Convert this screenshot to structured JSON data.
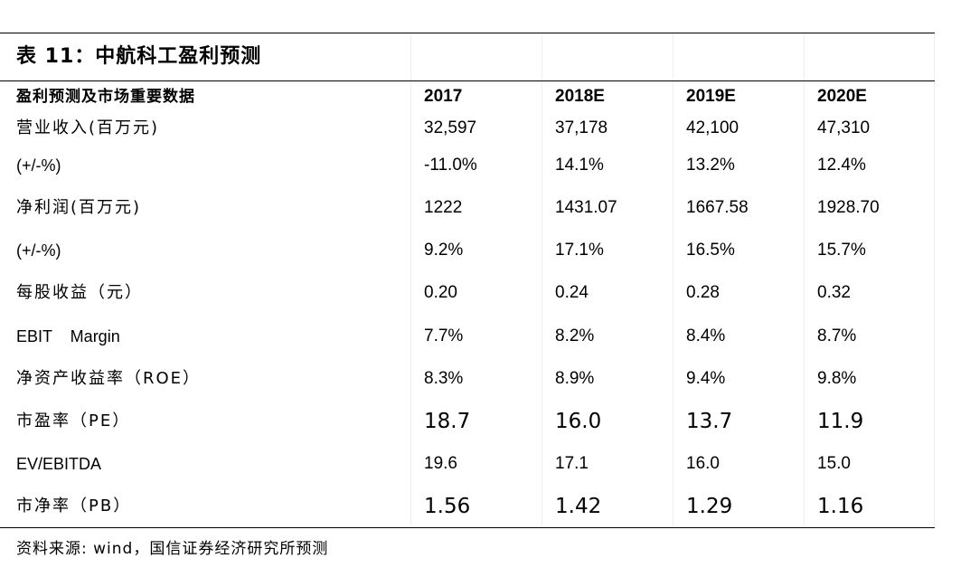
{
  "title": "表 11：中航科工盈利预测",
  "header": {
    "label": "盈利预测及市场重要数据",
    "years": [
      "2017",
      "2018E",
      "2019E",
      "2020E"
    ]
  },
  "rows": [
    {
      "label": "营业收入(百万元)",
      "values": [
        "32,597",
        "37,178",
        "42,100",
        "47,310"
      ]
    },
    {
      "label": "(+/-%)",
      "values": [
        "-11.0%",
        "14.1%",
        "13.2%",
        "12.4%"
      ]
    },
    {
      "label": "净利润(百万元)",
      "values": [
        "1222",
        "1431.07",
        "1667.58",
        "1928.70"
      ]
    },
    {
      "label": "(+/-%)",
      "values": [
        "9.2%",
        "17.1%",
        "16.5%",
        "15.7%"
      ]
    },
    {
      "label": "每股收益（元）",
      "values": [
        "0.20",
        "0.24",
        "0.28",
        "0.32"
      ]
    },
    {
      "label": "EBIT    Margin",
      "values": [
        "7.7%",
        "8.2%",
        "8.4%",
        "8.7%"
      ]
    },
    {
      "label": "净资产收益率（ROE）",
      "values": [
        "8.3%",
        "8.9%",
        "9.4%",
        "9.8%"
      ]
    },
    {
      "label": "市盈率（PE）",
      "values": [
        "18.7",
        "16.0",
        "13.7",
        "11.9"
      ]
    },
    {
      "label": "EV/EBITDA",
      "values": [
        "19.6",
        "17.1",
        "16.0",
        "15.0"
      ]
    },
    {
      "label": "市净率（PB）",
      "values": [
        "1.56",
        "1.42",
        "1.29",
        "1.16"
      ]
    }
  ],
  "source": "资料来源: wind，国信证券经济研究所预测"
}
